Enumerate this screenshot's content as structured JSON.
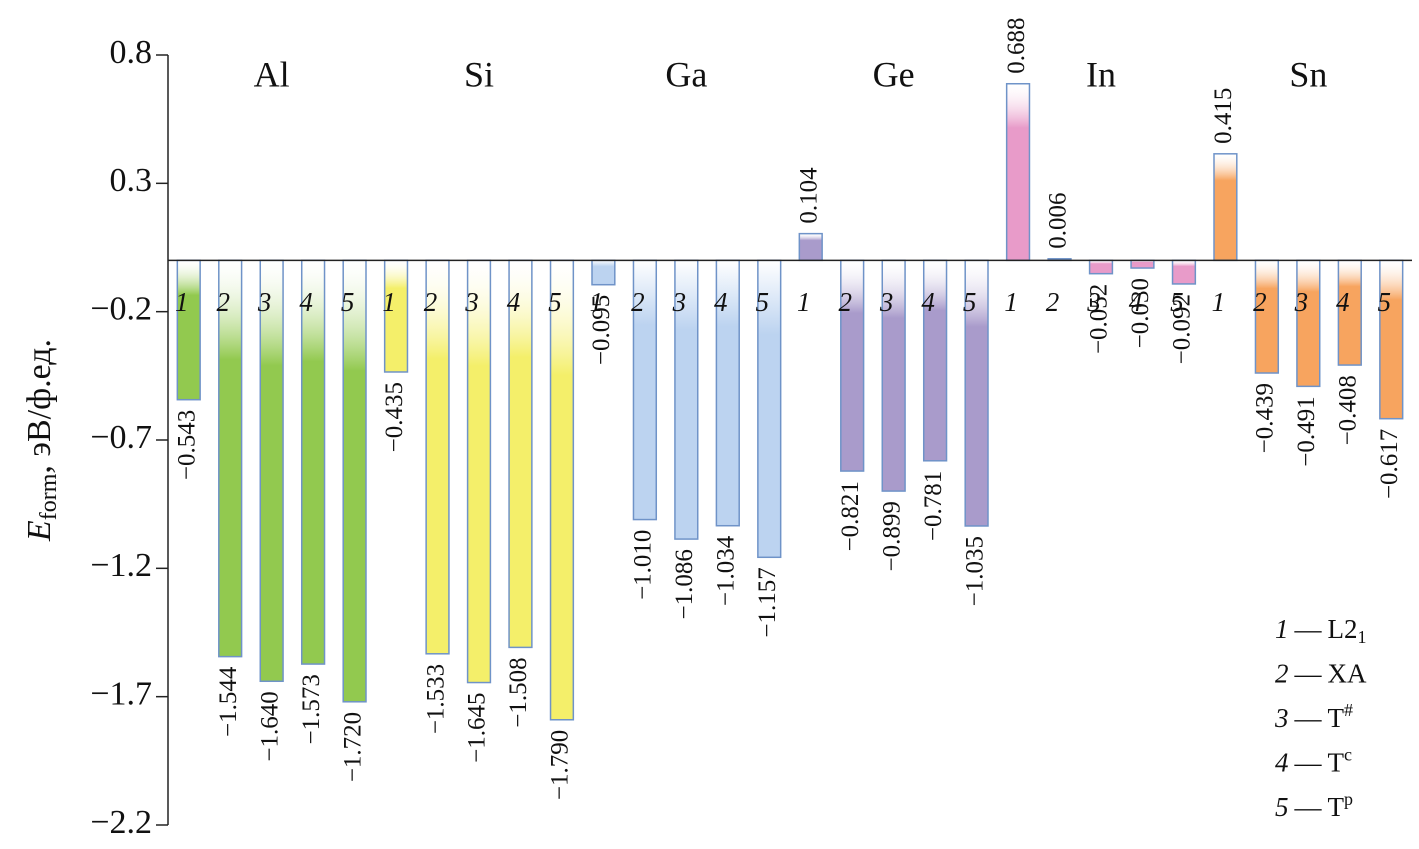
{
  "chart_data": {
    "type": "bar",
    "ylabel": {
      "symbol": "E",
      "subscript": "form",
      "rest": ", эВ/ф.ед."
    },
    "categories": [
      "Al",
      "Si",
      "Ga",
      "Ge",
      "In",
      "Sn"
    ],
    "category_colors": [
      "#92c94f",
      "#f4ef6a",
      "#bcd3f0",
      "#a99bcb",
      "#e89bc9",
      "#f7a45f"
    ],
    "series": [
      {
        "key": "1",
        "name": "L2",
        "sub": "1",
        "values": [
          -0.543,
          -0.435,
          -0.095,
          0.104,
          0.688,
          0.415
        ],
        "value_labels": [
          "−0.543",
          "−0.435",
          "−0.095",
          "0.104",
          "0.688",
          "0.415"
        ]
      },
      {
        "key": "2",
        "name": "XA",
        "values": [
          -1.544,
          -1.533,
          -1.01,
          -0.821,
          0.006,
          -0.439
        ],
        "value_labels": [
          "−1.544",
          "−1.533",
          "−1.010",
          "−0.821",
          "0.006",
          "−0.439"
        ]
      },
      {
        "key": "3",
        "name": "T",
        "sup": "#",
        "values": [
          -1.64,
          -1.645,
          -1.086,
          -0.899,
          -0.052,
          -0.491
        ],
        "value_labels": [
          "−1.640",
          "−1.645",
          "−1.086",
          "−0.899",
          "−0.052",
          "−0.491"
        ]
      },
      {
        "key": "4",
        "name": "T",
        "sup": "c",
        "values": [
          -1.573,
          -1.508,
          -1.034,
          -0.781,
          -0.03,
          -0.408
        ],
        "value_labels": [
          "−1.573",
          "−1.508",
          "−1.034",
          "−0.781",
          "−0.030",
          "−0.408"
        ]
      },
      {
        "key": "5",
        "name": "T",
        "sup": "p",
        "values": [
          -1.72,
          -1.79,
          -1.157,
          -1.035,
          -0.092,
          -0.617
        ],
        "value_labels": [
          "−1.720",
          "−1.790",
          "−1.157",
          "−1.035",
          "−0.092",
          "−0.617"
        ]
      }
    ],
    "legend_separator": "—",
    "bar_edge_color": "#6f93c8",
    "ylim": [
      -2.2,
      0.8
    ],
    "yticks": [
      0.8,
      0.3,
      {
        "value": -0.2,
        "label": "−0.2"
      },
      {
        "value": -0.7,
        "label": "−0.7"
      },
      {
        "value": -1.2,
        "label": "−1.2"
      },
      {
        "value": -1.7,
        "label": "−1.7"
      },
      {
        "value": -2.2,
        "label": "−2.2"
      }
    ]
  }
}
